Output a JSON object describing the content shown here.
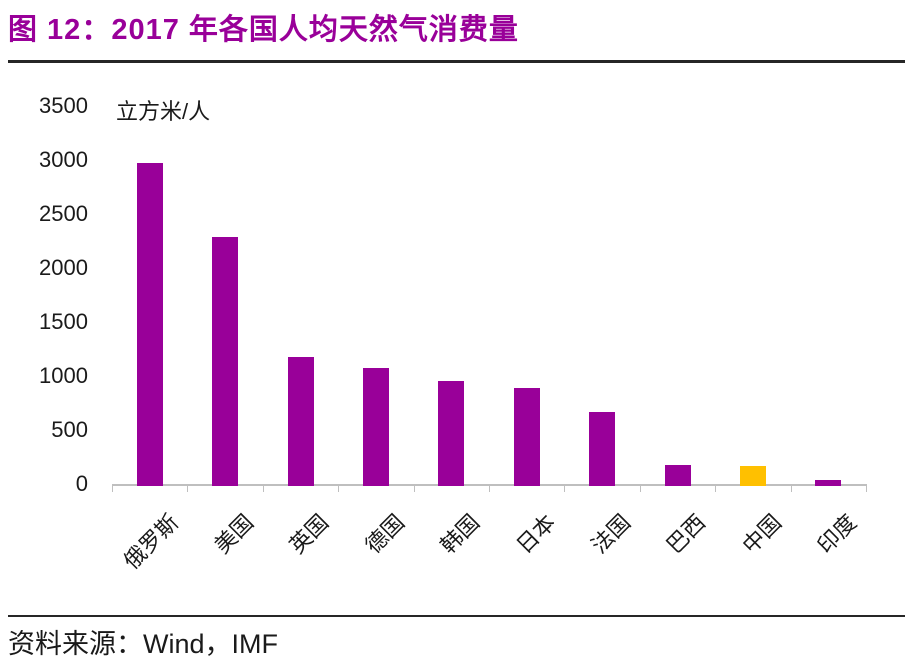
{
  "figure": {
    "title": "图 12：2017 年各国人均天然气消费量",
    "source": "资料来源：Wind，IMF"
  },
  "chart_data": {
    "type": "bar",
    "title": "2017 年各国人均天然气消费量",
    "unit_label": "立方米/人",
    "xlabel": "",
    "ylabel": "立方米/人",
    "categories": [
      "俄罗斯",
      "美国",
      "英国",
      "德国",
      "韩国",
      "日本",
      "法国",
      "巴西",
      "中国",
      "印度"
    ],
    "values": [
      2970,
      2290,
      1180,
      1070,
      950,
      890,
      670,
      180,
      165,
      40
    ],
    "ylim": [
      0,
      3500
    ],
    "yticks": [
      0,
      500,
      1000,
      1500,
      2000,
      2500,
      3000,
      3500
    ],
    "grid": false,
    "legend": "none",
    "bar_color": "#990099",
    "highlight_category": "中国",
    "highlight_color": "#FFC000"
  },
  "colors": {
    "title_accent": "#990099",
    "rule_dark": "#262626",
    "axis_gray": "#BFBFBF",
    "text": "#1a1a1a"
  }
}
